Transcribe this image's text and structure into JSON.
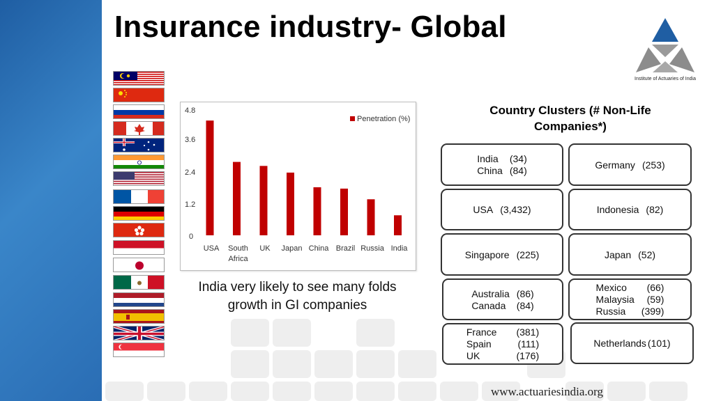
{
  "title": "Insurance industry- Global",
  "logo_text": "Institute of Actuaries of India",
  "flags": [
    "malaysia",
    "china",
    "russia",
    "canada",
    "australia",
    "india",
    "usa",
    "france",
    "germany",
    "hong-kong",
    "indonesia",
    "japan",
    "mexico",
    "netherlands",
    "spain",
    "uk",
    "singapore"
  ],
  "chart_data": {
    "type": "bar",
    "categories": [
      "USA",
      "South Africa",
      "UK",
      "Japan",
      "China",
      "Brazil",
      "Russia",
      "India"
    ],
    "series": [
      {
        "name": "Penetration (%)",
        "values": [
          4.3,
          2.75,
          2.6,
          2.35,
          1.8,
          1.75,
          1.35,
          0.75
        ]
      }
    ],
    "yticks": [
      "4.8",
      "3.6",
      "2.4",
      "1.2",
      "0"
    ],
    "ylim": [
      0,
      4.8
    ],
    "xlabel": "",
    "ylabel": "",
    "legend": "top-right",
    "bar_color": "#c00000",
    "grid": false
  },
  "note_line1": "India very likely to see many folds",
  "note_line2": "growth in GI companies",
  "clusters_title_1": "Country Clusters (# Non-Life",
  "clusters_title_2": "Companies*)",
  "clusters": [
    {
      "id": "c1",
      "rows": [
        [
          "India",
          "(34)"
        ],
        [
          "China",
          "(84)"
        ]
      ]
    },
    {
      "id": "c2",
      "rows": [
        [
          "Germany",
          "(253)"
        ]
      ]
    },
    {
      "id": "c3",
      "rows": [
        [
          "USA",
          "(3,432)"
        ]
      ]
    },
    {
      "id": "c4",
      "rows": [
        [
          "Indonesia",
          "(82)"
        ]
      ]
    },
    {
      "id": "c5",
      "rows": [
        [
          "Singapore",
          "(225)"
        ]
      ]
    },
    {
      "id": "c6",
      "rows": [
        [
          "Japan",
          "(52)"
        ]
      ]
    },
    {
      "id": "c7",
      "rows": [
        [
          "Australia",
          "(86)"
        ],
        [
          "Canada",
          "(84)"
        ]
      ]
    },
    {
      "id": "c8",
      "rows": [
        [
          "Mexico",
          "(66)"
        ],
        [
          "Malaysia",
          "(59)"
        ],
        [
          "Russia",
          "(399)"
        ]
      ]
    },
    {
      "id": "c9",
      "rows": [
        [
          "France",
          "(381)"
        ],
        [
          "Spain",
          "(111)"
        ],
        [
          "UK",
          "(176)"
        ]
      ]
    },
    {
      "id": "c10",
      "rows": [
        [
          "Netherlands",
          "(101)"
        ]
      ]
    }
  ],
  "footer": "www.actuariesindia.org"
}
